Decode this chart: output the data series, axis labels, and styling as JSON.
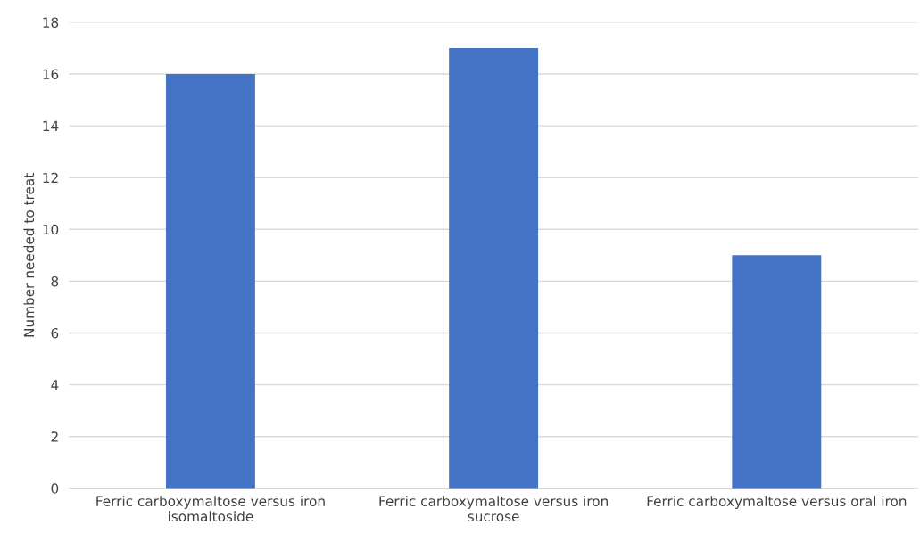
{
  "chart_data": {
    "type": "bar",
    "ylabel": "Number needed to treat",
    "categories": [
      "Ferric carboxymaltose versus iron isomaltoside",
      "Ferric carboxymaltose versus iron sucrose",
      "Ferric carboxymaltose versus oral iron"
    ],
    "values": [
      16,
      17,
      9
    ],
    "color": "#4472c4",
    "ylim": [
      0,
      18
    ],
    "yticks": [
      0,
      2,
      4,
      6,
      8,
      10,
      12,
      14,
      16,
      18
    ],
    "grid": "y"
  }
}
